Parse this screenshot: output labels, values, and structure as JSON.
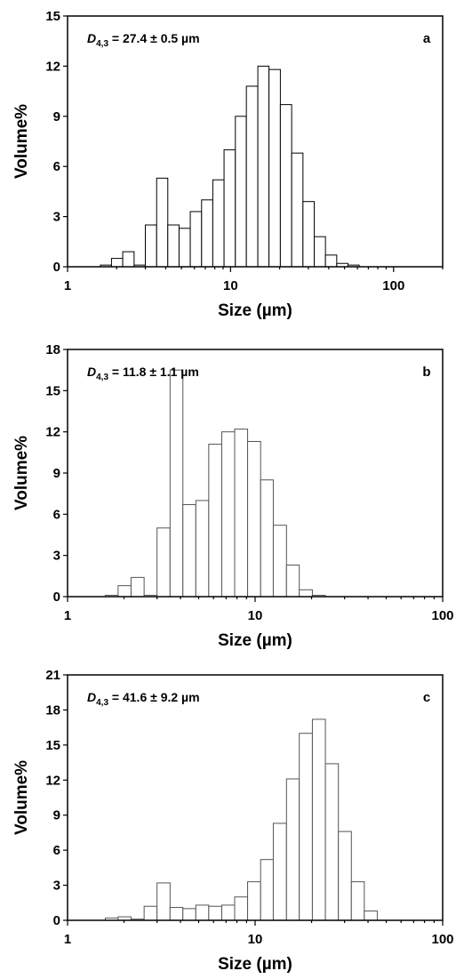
{
  "chart_data": [
    {
      "type": "bar",
      "panel_label": "a",
      "annotation": {
        "prefix": "D",
        "subscript": "4,3",
        "text": " = 27.4 ± 0.5 µm"
      },
      "xlabel": "Size (µm)",
      "ylabel": "Volume%",
      "x_scale": "log",
      "xlim": [
        1,
        200
      ],
      "ylim": [
        0,
        15
      ],
      "x_ticks": [
        1,
        10,
        100
      ],
      "x_tick_labels": [
        "1",
        "10",
        "100"
      ],
      "y_ticks": [
        0,
        3,
        6,
        9,
        12,
        15
      ],
      "y_tick_labels": [
        "0",
        "3",
        "6",
        "9",
        "12",
        "15"
      ],
      "bar_edges": [
        1.59,
        1.86,
        2.18,
        2.56,
        3.0,
        3.52,
        4.12,
        4.83,
        5.66,
        6.64,
        7.78,
        9.12,
        10.7,
        12.5,
        14.7,
        17.2,
        20.2,
        23.7,
        27.8,
        32.6,
        38.2,
        44.8,
        52.5,
        61.5,
        72.1,
        84.5,
        99.1,
        116.2
      ],
      "values": [
        0.1,
        0.5,
        0.9,
        0.1,
        2.5,
        5.3,
        2.5,
        2.3,
        3.3,
        4.0,
        5.2,
        7.0,
        9.0,
        10.8,
        12.0,
        11.8,
        9.7,
        6.8,
        3.9,
        1.8,
        0.7,
        0.2,
        0.1
      ]
    },
    {
      "type": "bar",
      "panel_label": "b",
      "annotation": {
        "prefix": "D",
        "subscript": "4,3",
        "text": " = 11.8 ± 1.1 µm"
      },
      "xlabel": "Size (µm)",
      "ylabel": "Volume%",
      "x_scale": "log",
      "xlim": [
        1,
        100
      ],
      "ylim": [
        0,
        18
      ],
      "x_ticks": [
        1,
        10,
        100
      ],
      "x_tick_labels": [
        "1",
        "10",
        "100"
      ],
      "y_ticks": [
        0,
        3,
        6,
        9,
        12,
        15,
        18
      ],
      "y_tick_labels": [
        "0",
        "3",
        "6",
        "9",
        "12",
        "15",
        "18"
      ],
      "bar_edges": [
        1.59,
        1.86,
        2.18,
        2.56,
        3.0,
        3.52,
        4.12,
        4.83,
        5.66,
        6.64,
        7.78,
        9.12,
        10.7,
        12.5,
        14.7,
        17.2,
        20.2,
        23.7,
        27.8,
        32.6
      ],
      "values": [
        0.1,
        0.8,
        1.4,
        0.1,
        5.0,
        16.5,
        6.7,
        7.0,
        11.1,
        12.0,
        12.2,
        11.3,
        8.5,
        5.2,
        2.3,
        0.5,
        0.1
      ]
    },
    {
      "type": "bar",
      "panel_label": "c",
      "annotation": {
        "prefix": "D",
        "subscript": "4,3",
        "text": " = 41.6 ± 9.2 µm"
      },
      "xlabel": "Size (µm)",
      "ylabel": "Volume%",
      "x_scale": "log",
      "xlim": [
        1,
        100
      ],
      "ylim": [
        0,
        21
      ],
      "x_ticks": [
        1,
        10,
        100
      ],
      "x_tick_labels": [
        "1",
        "10",
        "100"
      ],
      "y_ticks": [
        0,
        3,
        6,
        9,
        12,
        15,
        18,
        21
      ],
      "y_tick_labels": [
        "0",
        "3",
        "6",
        "9",
        "12",
        "15",
        "18",
        "21"
      ],
      "bar_edges": [
        1.59,
        1.86,
        2.18,
        2.56,
        3.0,
        3.52,
        4.12,
        4.83,
        5.66,
        6.64,
        7.78,
        9.12,
        10.7,
        12.5,
        14.7,
        17.2,
        20.2,
        23.7,
        27.8,
        32.6,
        38.2,
        44.8,
        52.5,
        61.5,
        72.1,
        84.5,
        99.1
      ],
      "values": [
        0.2,
        0.3,
        0.1,
        1.2,
        3.2,
        1.1,
        1.0,
        1.3,
        1.2,
        1.3,
        2.0,
        3.3,
        5.2,
        8.3,
        12.1,
        16.0,
        17.2,
        13.4,
        7.6,
        3.3,
        0.8
      ]
    }
  ]
}
